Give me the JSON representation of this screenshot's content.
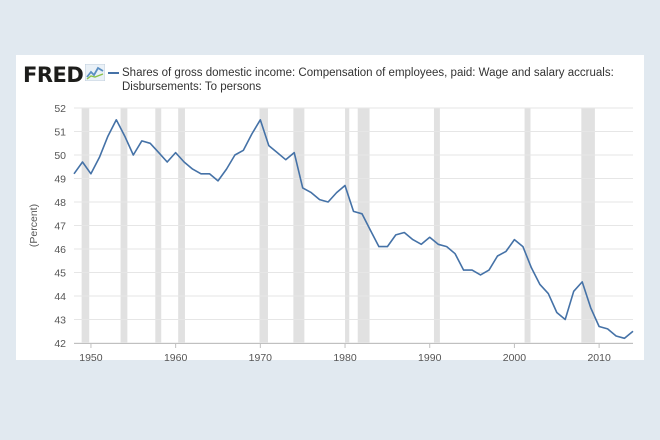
{
  "brand": {
    "logo_text": "FRED",
    "logo_icon": "chart-line-icon"
  },
  "chart_data": {
    "type": "line",
    "title": "",
    "xlabel": "",
    "ylabel": "(Percent)",
    "xlim": [
      1948,
      2014
    ],
    "ylim": [
      42,
      52
    ],
    "y_ticks": [
      42,
      43,
      44,
      45,
      46,
      47,
      48,
      49,
      50,
      51,
      52
    ],
    "x_ticks": [
      1950,
      1960,
      1970,
      1980,
      1990,
      2000,
      2010
    ],
    "grid": "horizontal",
    "legend_position": "top",
    "recession_color": "#e1e1e1",
    "line_color": "#4572a7",
    "recessions": [
      [
        1948.9,
        1949.8
      ],
      [
        1953.5,
        1954.3
      ],
      [
        1957.6,
        1958.3
      ],
      [
        1960.3,
        1961.1
      ],
      [
        1969.9,
        1970.9
      ],
      [
        1973.9,
        1975.2
      ],
      [
        1980.0,
        1980.5
      ],
      [
        1981.5,
        1982.9
      ],
      [
        1990.5,
        1991.2
      ],
      [
        2001.2,
        2001.9
      ],
      [
        2007.9,
        2009.5
      ]
    ],
    "series": [
      {
        "name": "Shares of gross domestic income: Compensation of employees, paid: Wage and salary accruals: Disbursements: To persons",
        "x": [
          1948,
          1949,
          1950,
          1951,
          1952,
          1953,
          1954,
          1955,
          1956,
          1957,
          1958,
          1959,
          1960,
          1961,
          1962,
          1963,
          1964,
          1965,
          1966,
          1967,
          1968,
          1969,
          1970,
          1971,
          1972,
          1973,
          1974,
          1975,
          1976,
          1977,
          1978,
          1979,
          1980,
          1981,
          1982,
          1983,
          1984,
          1985,
          1986,
          1987,
          1988,
          1989,
          1990,
          1991,
          1992,
          1993,
          1994,
          1995,
          1996,
          1997,
          1998,
          1999,
          2000,
          2001,
          2002,
          2003,
          2004,
          2005,
          2006,
          2007,
          2008,
          2009,
          2010,
          2011,
          2012,
          2013,
          2014
        ],
        "y": [
          49.2,
          49.7,
          49.2,
          49.9,
          50.8,
          51.5,
          50.8,
          50.0,
          50.6,
          50.5,
          50.1,
          49.7,
          50.1,
          49.7,
          49.4,
          49.2,
          49.2,
          48.9,
          49.4,
          50.0,
          50.2,
          50.9,
          51.5,
          50.4,
          50.1,
          49.8,
          50.1,
          48.6,
          48.4,
          48.1,
          48.0,
          48.4,
          48.7,
          47.6,
          47.5,
          46.8,
          46.1,
          46.1,
          46.6,
          46.7,
          46.4,
          46.2,
          46.5,
          46.2,
          46.1,
          45.8,
          45.1,
          45.1,
          44.9,
          45.1,
          45.7,
          45.9,
          46.4,
          46.1,
          45.2,
          44.5,
          44.1,
          43.3,
          43.0,
          44.2,
          44.6,
          43.5,
          42.7,
          42.6,
          42.3,
          42.2,
          42.5
        ]
      }
    ]
  }
}
